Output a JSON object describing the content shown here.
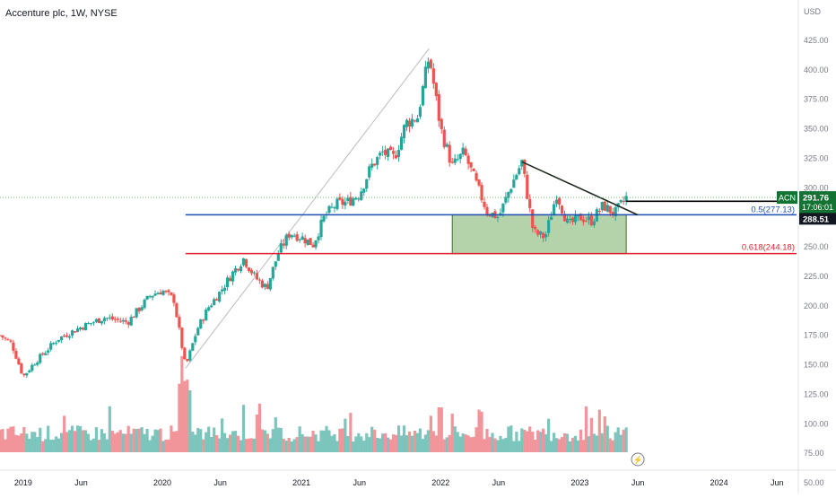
{
  "title": "Accenture plc, 1W, NYSE",
  "currency": "USD",
  "colors": {
    "up": "#26a69a",
    "down": "#ef5350",
    "vol_up": "#7cc5bd",
    "vol_down": "#f1959a",
    "blue_line": "#1e4fb4",
    "red_line": "#e0232e",
    "box_fill": "#9cc48e",
    "box_stroke": "#3f6e2c",
    "trend": "#1f2a1f",
    "grey_line": "#b8bcc4",
    "label_green": "#137333",
    "price_dotted": "#4caf50"
  },
  "axis": {
    "y_ticks": [
      "425.00",
      "400.00",
      "375.00",
      "350.00",
      "325.00",
      "300.00",
      "275.00",
      "250.00",
      "225.00",
      "200.00",
      "175.00",
      "150.00",
      "125.00",
      "100.00",
      "75.00",
      "50.00"
    ],
    "x_ticks": [
      "2019",
      "Jun",
      "2020",
      "Jun",
      "2021",
      "Jun",
      "2022",
      "Jun",
      "2023",
      "Jun",
      "2024",
      "Jun"
    ]
  },
  "labels": {
    "fib_05": "0.5(277.13)",
    "fib_0618": "0.618(244.18)",
    "ticker": "ACN",
    "last_price": "291.76",
    "countdown": "17:06:01",
    "level": "288.51"
  },
  "chart_data": {
    "type": "candlestick",
    "title": "Accenture plc, 1W, NYSE",
    "ylabel": "USD",
    "ylim": [
      50,
      450
    ],
    "x_range": [
      "2018-11",
      "2024-09"
    ],
    "last_price": 291.76,
    "horizontal_levels": [
      {
        "label": "0.5(277.13)",
        "value": 277.13,
        "color": "#1e4fb4"
      },
      {
        "label": "0.618(244.18)",
        "value": 244.18,
        "color": "#e0232e"
      },
      {
        "label": "288.51",
        "value": 288.51
      }
    ],
    "rectangle": {
      "x_from": "2022-02",
      "x_to": "2023-05",
      "y_from": 244.18,
      "y_to": 277.13
    },
    "trendlines": [
      {
        "from": [
          "2022-08",
          322
        ],
        "to": [
          "2023-06",
          277
        ]
      },
      {
        "from": [
          "2020-03",
          147
        ],
        "to": [
          "2021-12",
          418
        ]
      }
    ],
    "price_anchors": [
      [
        "2018-11",
        175
      ],
      [
        "2018-12",
        168
      ],
      [
        "2019-01",
        140
      ],
      [
        "2019-02",
        152
      ],
      [
        "2019-04",
        172
      ],
      [
        "2019-06",
        182
      ],
      [
        "2019-08",
        190
      ],
      [
        "2019-10",
        186
      ],
      [
        "2019-12",
        209
      ],
      [
        "2020-01",
        213
      ],
      [
        "2020-02",
        205
      ],
      [
        "2020-03",
        148
      ],
      [
        "2020-04",
        180
      ],
      [
        "2020-05",
        199
      ],
      [
        "2020-06",
        212
      ],
      [
        "2020-07",
        227
      ],
      [
        "2020-08",
        240
      ],
      [
        "2020-09",
        224
      ],
      [
        "2020-10",
        215
      ],
      [
        "2020-11",
        245
      ],
      [
        "2020-12",
        262
      ],
      [
        "2021-01",
        258
      ],
      [
        "2021-02",
        252
      ],
      [
        "2021-03",
        276
      ],
      [
        "2021-04",
        286
      ],
      [
        "2021-05",
        288
      ],
      [
        "2021-06",
        295
      ],
      [
        "2021-07",
        318
      ],
      [
        "2021-08",
        330
      ],
      [
        "2021-09",
        325
      ],
      [
        "2021-10",
        355
      ],
      [
        "2021-11",
        360
      ],
      [
        "2021-12",
        412
      ],
      [
        "2022-01",
        350
      ],
      [
        "2022-02",
        318
      ],
      [
        "2022-03",
        330
      ],
      [
        "2022-04",
        305
      ],
      [
        "2022-05",
        280
      ],
      [
        "2022-06",
        275
      ],
      [
        "2022-07",
        300
      ],
      [
        "2022-08",
        322
      ],
      [
        "2022-09",
        262
      ],
      [
        "2022-10",
        258
      ],
      [
        "2022-11",
        295
      ],
      [
        "2022-12",
        268
      ],
      [
        "2023-01",
        275
      ],
      [
        "2023-02",
        272
      ],
      [
        "2023-03",
        285
      ],
      [
        "2023-04",
        278
      ],
      [
        "2023-05",
        291.76
      ]
    ],
    "volume_ylim": [
      0,
      130
    ]
  }
}
